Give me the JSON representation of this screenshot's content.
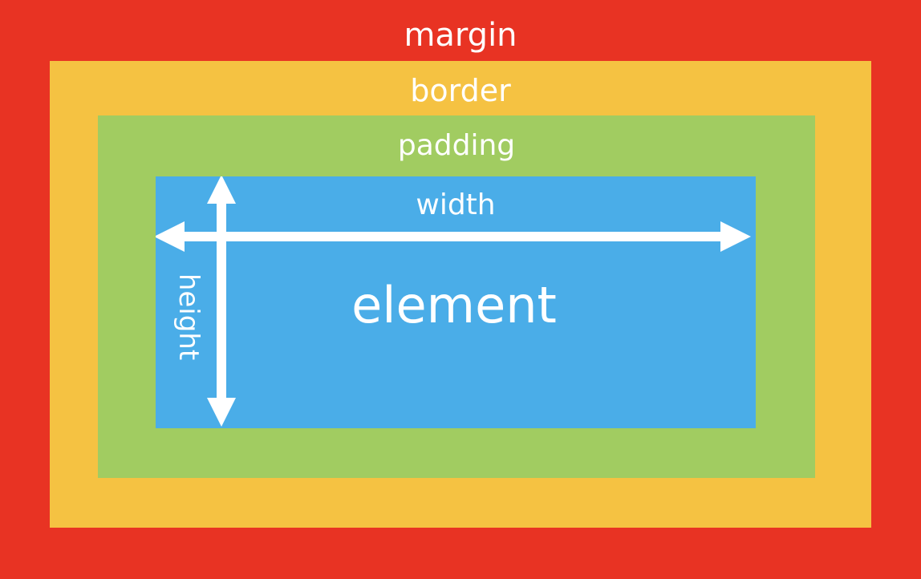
{
  "labels": {
    "margin": "margin",
    "border": "border",
    "padding": "padding",
    "width": "width",
    "height": "height",
    "element": "element"
  },
  "colors": {
    "margin": "#E83323",
    "border": "#F5C242",
    "padding": "#A1CC61",
    "element": "#4AADE8",
    "text": "#FFFFFF"
  },
  "icons": {
    "width_arrow": "double-headed-horizontal-arrow",
    "height_arrow": "double-headed-vertical-arrow"
  }
}
